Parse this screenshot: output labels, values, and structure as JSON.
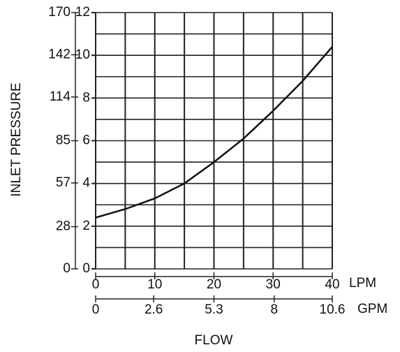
{
  "chart_data": {
    "type": "line",
    "ylabel": "INLET PRESSURE",
    "xlabel": "FLOW",
    "x_unit": "LPM",
    "x2_unit": "GPM",
    "x": [
      0,
      5,
      10,
      15,
      20,
      25,
      30,
      35,
      40
    ],
    "series": [
      {
        "color": "#111111",
        "values": [
          2.4,
          2.8,
          3.3,
          4.0,
          5.0,
          6.1,
          7.4,
          8.8,
          10.4
        ]
      }
    ],
    "xlim": [
      0,
      40
    ],
    "xticks": [
      0,
      10,
      20,
      30,
      40
    ],
    "x2lim": [
      0,
      10.6
    ],
    "x2ticks": [
      0,
      2.6,
      5.3,
      8,
      10.6
    ],
    "ylim": [
      0,
      12
    ],
    "yticks": [
      0,
      2,
      4,
      6,
      8,
      10,
      12
    ],
    "y2lim": [
      0,
      170
    ],
    "y2ticks": [
      0,
      28,
      57,
      85,
      114,
      142,
      170
    ],
    "grid": true,
    "xgrid": [
      0,
      5,
      10,
      15,
      20,
      25,
      30,
      35,
      40
    ],
    "ygrid": [
      0,
      1,
      2,
      3,
      4,
      5,
      6,
      7,
      8,
      9,
      10,
      11,
      12
    ]
  }
}
